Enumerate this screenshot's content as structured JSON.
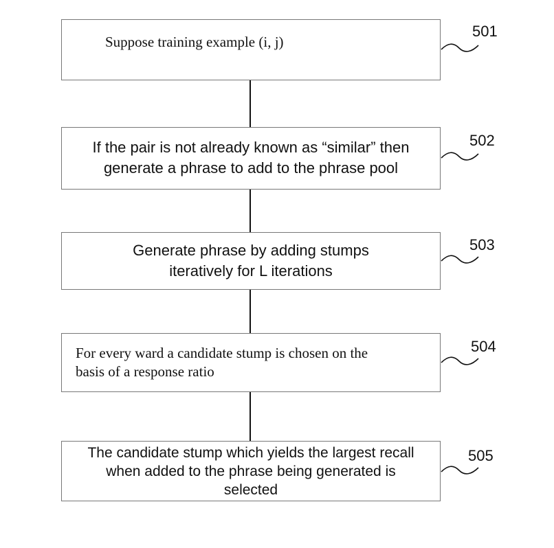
{
  "steps": [
    {
      "ref": "501",
      "text": "Suppose training example (i, j)"
    },
    {
      "ref": "502",
      "line1": "If the pair is not already known as “similar” then",
      "line2": "generate a phrase to add to the phrase pool"
    },
    {
      "ref": "503",
      "line1": "Generate phrase by adding stumps",
      "line2": "iteratively for L iterations"
    },
    {
      "ref": "504",
      "line1": "For every ward a candidate stump is chosen on the",
      "line2": "basis of a response ratio"
    },
    {
      "ref": "505",
      "line1": "The candidate stump which yields the largest recall",
      "line2": "when added to the phrase being generated is",
      "line3": "selected"
    }
  ]
}
